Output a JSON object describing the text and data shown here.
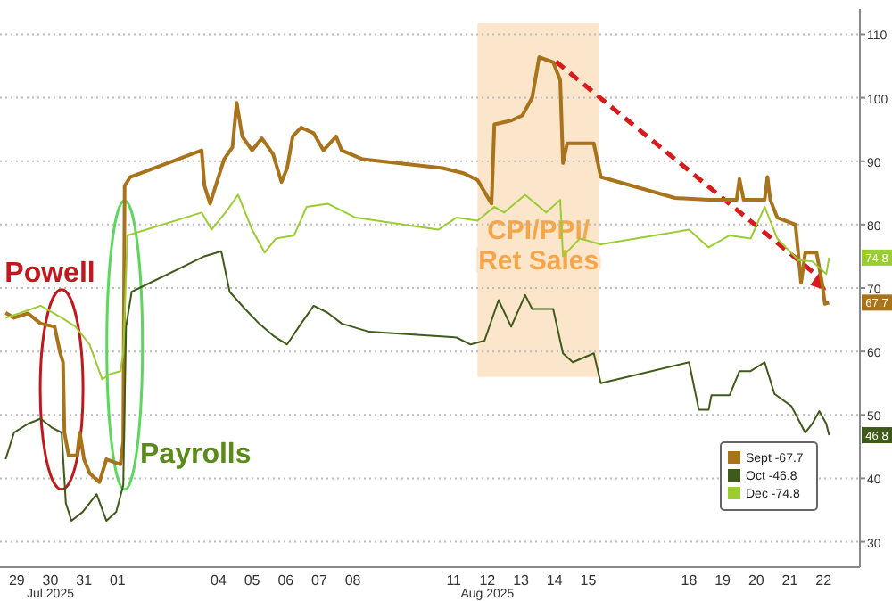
{
  "chart_data": {
    "type": "line",
    "xlim": [
      "2025-07-29",
      "2025-08-23T14:00"
    ],
    "ylim": [
      26,
      114
    ],
    "xticks": [
      {
        "value": "2025-07-29T12:00",
        "label": "29"
      },
      {
        "value": "2025-07-30T12:00",
        "label": "30"
      },
      {
        "value": "2025-07-31T12:00",
        "label": "31"
      },
      {
        "value": "2025-08-01T12:00",
        "label": "01"
      },
      {
        "value": "2025-08-04T12:00",
        "label": "04"
      },
      {
        "value": "2025-08-05T12:00",
        "label": "05"
      },
      {
        "value": "2025-08-06T12:00",
        "label": "06"
      },
      {
        "value": "2025-08-07T12:00",
        "label": "07"
      },
      {
        "value": "2025-08-08T12:00",
        "label": "08"
      },
      {
        "value": "2025-08-11T12:00",
        "label": "11"
      },
      {
        "value": "2025-08-12T12:00",
        "label": "12"
      },
      {
        "value": "2025-08-13T12:00",
        "label": "13"
      },
      {
        "value": "2025-08-14T12:00",
        "label": "14"
      },
      {
        "value": "2025-08-15T12:00",
        "label": "15"
      },
      {
        "value": "2025-08-18T12:00",
        "label": "18"
      },
      {
        "value": "2025-08-19T12:00",
        "label": "19"
      },
      {
        "value": "2025-08-20T12:00",
        "label": "20"
      },
      {
        "value": "2025-08-21T12:00",
        "label": "21"
      },
      {
        "value": "2025-08-22T12:00",
        "label": "22"
      }
    ],
    "yticks": [
      30,
      40,
      50,
      60,
      70,
      80,
      90,
      100,
      110
    ],
    "grid": true,
    "legend": "bottom right",
    "line_style": "solid",
    "marker": "none",
    "series": [
      {
        "name": "Sept -67.7",
        "color": "#a8731a",
        "x": [
          "2025-07-29T04:00",
          "2025-07-29T10:00",
          "2025-07-29T20:00",
          "2025-07-30T05:00",
          "2025-07-30T15:00",
          "2025-07-30T19:00",
          "2025-07-30T21:00",
          "2025-07-30T22:00",
          "2025-07-31T01:00",
          "2025-07-31T07:00",
          "2025-07-31T09:00",
          "2025-07-31T12:00",
          "2025-07-31T16:00",
          "2025-07-31T23:00",
          "2025-08-01T04:00",
          "2025-08-01T14:00",
          "2025-08-01T16:00",
          "2025-08-01T17:00",
          "2025-08-01T21:00",
          "2025-08-04T00:00",
          "2025-08-04T02:00",
          "2025-08-04T06:00",
          "2025-08-04T12:00",
          "2025-08-04T16:00",
          "2025-08-04T22:00",
          "2025-08-05T01:00",
          "2025-08-05T05:00",
          "2025-08-05T12:00",
          "2025-08-05T19:00",
          "2025-08-06T03:00",
          "2025-08-06T09:00",
          "2025-08-06T13:00",
          "2025-08-06T17:00",
          "2025-08-06T23:00",
          "2025-08-07T08:00",
          "2025-08-07T15:00",
          "2025-08-08T00:00",
          "2025-08-08T04:00",
          "2025-08-08T19:00",
          "2025-08-11T04:00",
          "2025-08-11T19:00",
          "2025-08-12T05:00",
          "2025-08-12T15:00",
          "2025-08-12T17:00",
          "2025-08-13T05:00",
          "2025-08-13T13:00",
          "2025-08-13T20:00",
          "2025-08-14T01:00",
          "2025-08-14T11:00",
          "2025-08-14T16:00",
          "2025-08-14T18:00",
          "2025-08-14T21:00",
          "2025-08-15T16:00",
          "2025-08-15T21:00",
          "2025-08-18T02:00",
          "2025-08-19T02:00",
          "2025-08-19T22:00",
          "2025-08-20T00:00",
          "2025-08-20T03:00",
          "2025-08-20T18:00",
          "2025-08-20T20:00",
          "2025-08-20T22:00",
          "2025-08-21T03:00",
          "2025-08-21T16:00",
          "2025-08-21T20:00",
          "2025-08-21T23:00",
          "2025-08-22T07:00",
          "2025-08-22T11:00",
          "2025-08-22T13:00",
          "2025-08-22T16:00"
        ],
        "values": [
          66.1,
          65.3,
          66,
          64.4,
          63.9,
          59.7,
          58.3,
          47.2,
          43.6,
          43.6,
          47.2,
          43,
          40.8,
          39.4,
          43,
          42.2,
          45.8,
          86.1,
          87.5,
          91.7,
          86.1,
          83.3,
          87.5,
          90.3,
          92.2,
          99.2,
          93.9,
          91.7,
          93.6,
          91.1,
          86.7,
          88.9,
          93.9,
          95.3,
          94.4,
          91.7,
          93.9,
          91.7,
          90.3,
          88.9,
          88.1,
          87,
          83.3,
          95.8,
          96.4,
          97.2,
          100,
          106.4,
          105.6,
          102.8,
          89.7,
          92.8,
          92.8,
          87.5,
          84.2,
          83.9,
          83.9,
          87.2,
          83.9,
          83.9,
          87.5,
          83.9,
          81.1,
          80,
          70.8,
          75.6,
          75.6,
          70.8,
          67.5,
          67.7
        ]
      },
      {
        "name": "Oct -46.8",
        "color": "#3f5a1a",
        "x": [
          "2025-07-29T04:00",
          "2025-07-29T10:00",
          "2025-07-29T20:00",
          "2025-07-30T05:00",
          "2025-07-30T13:00",
          "2025-07-30T20:00",
          "2025-07-30T23:00",
          "2025-07-31T03:00",
          "2025-07-31T11:00",
          "2025-07-31T21:00",
          "2025-08-01T04:00",
          "2025-08-01T11:00",
          "2025-08-01T16:00",
          "2025-08-01T18:00",
          "2025-08-01T22:00",
          "2025-08-04T02:00",
          "2025-08-04T14:00",
          "2025-08-04T20:00",
          "2025-08-05T07:00",
          "2025-08-05T17:00",
          "2025-08-06T03:00",
          "2025-08-06T13:00",
          "2025-08-06T23:00",
          "2025-08-07T08:00",
          "2025-08-07T18:00",
          "2025-08-08T04:00",
          "2025-08-08T23:30",
          "2025-08-11T14:00",
          "2025-08-12T00:00",
          "2025-08-12T10:00",
          "2025-08-12T20:00",
          "2025-08-13T05:00",
          "2025-08-13T15:00",
          "2025-08-13T20:00",
          "2025-08-14T11:00",
          "2025-08-14T18:00",
          "2025-08-15T01:00",
          "2025-08-15T16:00",
          "2025-08-15T21:00",
          "2025-08-18T12:00",
          "2025-08-18T19:00",
          "2025-08-19T02:00",
          "2025-08-19T04:00",
          "2025-08-19T17:00",
          "2025-08-20T00:00",
          "2025-08-20T08:00",
          "2025-08-20T18:00",
          "2025-08-21T01:00",
          "2025-08-21T13:00",
          "2025-08-21T23:00",
          "2025-08-22T04:00",
          "2025-08-22T09:00",
          "2025-08-22T14:00",
          "2025-08-22T16:00"
        ],
        "values": [
          43,
          47.2,
          48.6,
          49.4,
          48,
          47.2,
          36.1,
          33.3,
          34.7,
          37.5,
          33.3,
          34.7,
          38.9,
          63.9,
          69.4,
          75,
          75.8,
          69.4,
          66.7,
          64.4,
          62.5,
          61.1,
          64.4,
          67.2,
          66.1,
          64.4,
          63.1,
          62.2,
          61.1,
          61.7,
          68.1,
          63.9,
          68.9,
          66.7,
          66.7,
          59.7,
          58.3,
          59.7,
          55,
          58.3,
          50.8,
          50.8,
          53.1,
          53.1,
          56.9,
          56.9,
          58.3,
          53.3,
          51.4,
          47.2,
          48.6,
          50.6,
          48.6,
          46.8
        ]
      },
      {
        "name": "Dec -74.8",
        "color": "#9acd32",
        "x": [
          "2025-07-29T04:00",
          "2025-07-29T15:00",
          "2025-07-30T05:00",
          "2025-07-30T20:00",
          "2025-07-31T06:00",
          "2025-07-31T16:00",
          "2025-08-01T01:00",
          "2025-08-01T06:00",
          "2025-08-01T14:00",
          "2025-08-01T16:00",
          "2025-08-01T19:00",
          "2025-08-04T00:00",
          "2025-08-04T07:00",
          "2025-08-04T17:00",
          "2025-08-05T02:00",
          "2025-08-05T12:00",
          "2025-08-05T21:00",
          "2025-08-06T05:00",
          "2025-08-06T18:00",
          "2025-08-07T03:00",
          "2025-08-07T18:00",
          "2025-08-08T14:00",
          "2025-08-11T01:00",
          "2025-08-11T14:00",
          "2025-08-12T05:00",
          "2025-08-12T17:00",
          "2025-08-13T00:00",
          "2025-08-13T15:00",
          "2025-08-14T06:00",
          "2025-08-14T16:00",
          "2025-08-14T18:00",
          "2025-08-15T06:00",
          "2025-08-15T21:00",
          "2025-08-18T12:00",
          "2025-08-19T02:00",
          "2025-08-19T17:00",
          "2025-08-20T08:00",
          "2025-08-20T18:00",
          "2025-08-21T03:00",
          "2025-08-21T18:00",
          "2025-08-22T04:00",
          "2025-08-22T14:00",
          "2025-08-22T16:00"
        ],
        "values": [
          65.3,
          66.1,
          67.2,
          65.3,
          63.9,
          61.1,
          55.6,
          56.4,
          56.9,
          59.7,
          78.3,
          81.9,
          79.2,
          81.9,
          84.7,
          79.2,
          75.6,
          77.8,
          78.3,
          82.8,
          83.3,
          81.1,
          79.2,
          81.1,
          80.6,
          82.8,
          81.9,
          84.7,
          81.9,
          83.9,
          75,
          77.8,
          76.9,
          79.2,
          76.4,
          78.3,
          77.8,
          82.8,
          77.8,
          74.4,
          74.2,
          72.2,
          74.8
        ]
      }
    ],
    "bands": [
      {
        "axis": "x",
        "from": "2025-08-12T05:00",
        "to": "2025-08-15T20:00",
        "label": "CPI/PPI/ Ret Sales",
        "color": "#fbe6cc"
      }
    ],
    "annotations": [
      "Powell",
      "Payrolls",
      "67.7",
      "46.8",
      "74.8",
      "Jul 2025",
      "Aug 2025"
    ]
  }
}
